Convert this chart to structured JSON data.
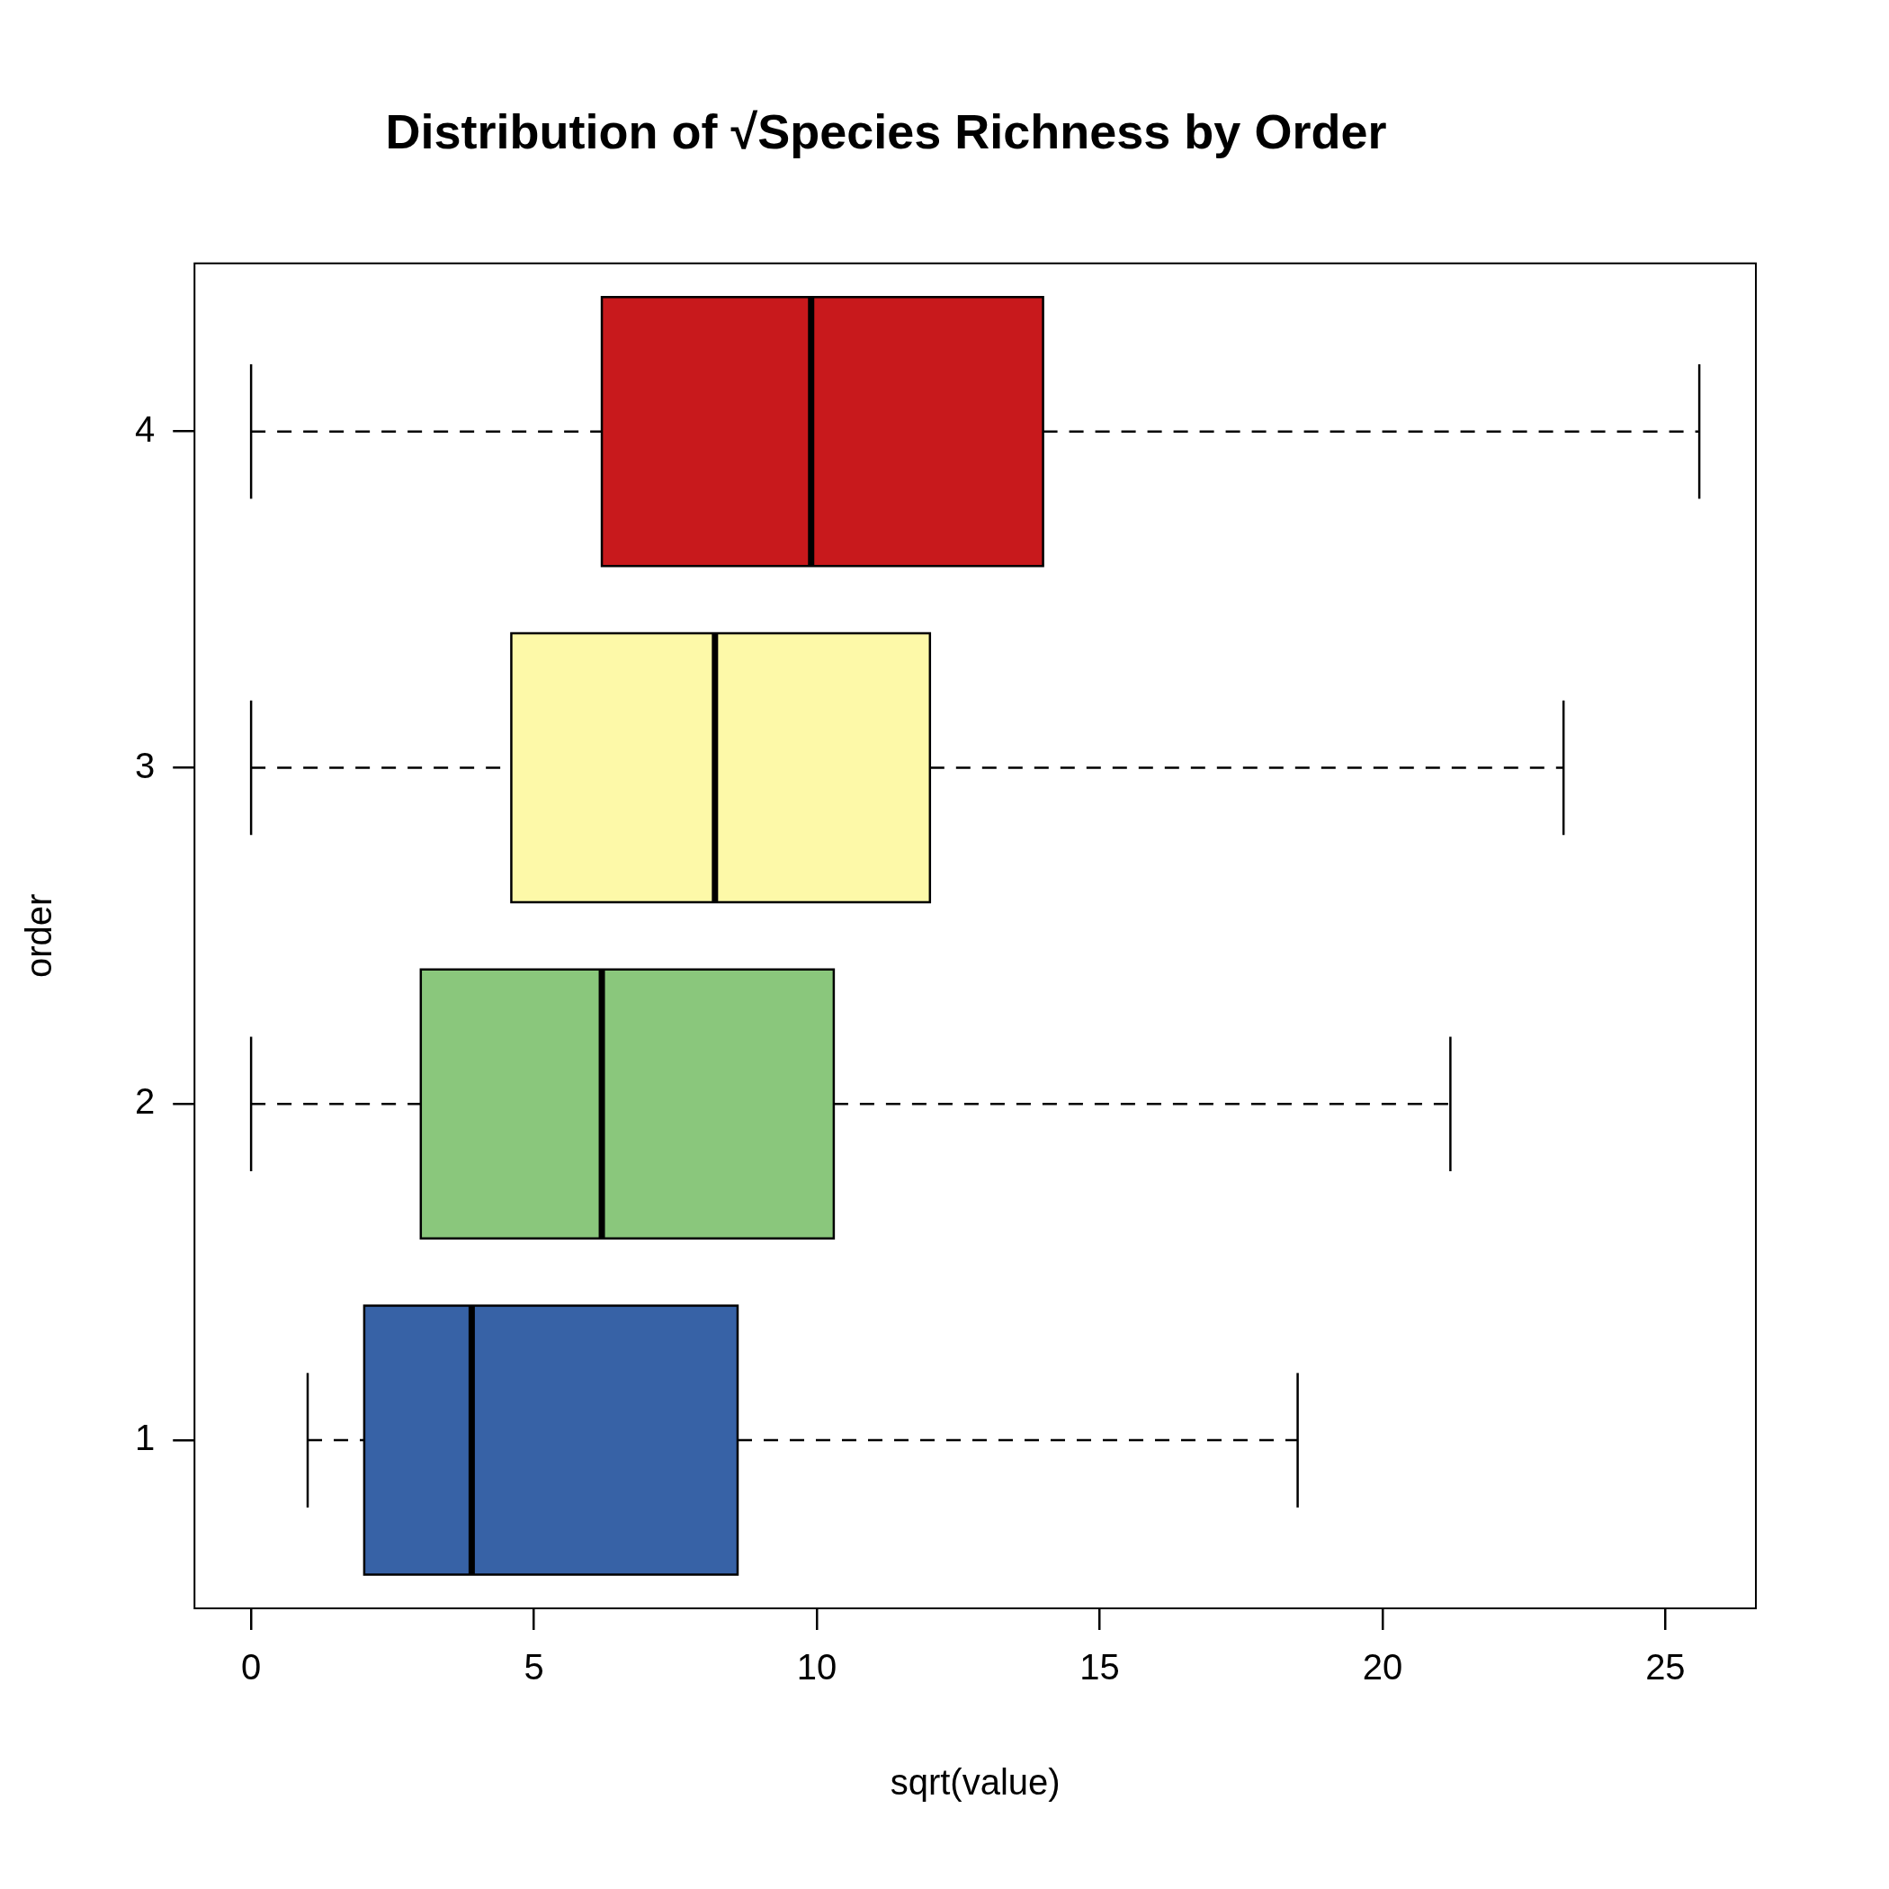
{
  "chart_data": {
    "type": "box",
    "title": "Distribution of √Species Richness by Order",
    "xlabel": "sqrt(value)",
    "ylabel": "order",
    "orientation": "horizontal",
    "categories": [
      "4",
      "3",
      "2",
      "1"
    ],
    "boxes": [
      {
        "low": 0,
        "q1": 6.2,
        "median": 9.9,
        "q3": 14.0,
        "high": 25.6
      },
      {
        "low": 0,
        "q1": 4.6,
        "median": 8.2,
        "q3": 12.0,
        "high": 23.2
      },
      {
        "low": 0,
        "q1": 3.0,
        "median": 6.2,
        "q3": 10.3,
        "high": 21.2
      },
      {
        "low": 1.0,
        "q1": 2.0,
        "median": 3.9,
        "q3": 8.6,
        "high": 18.5
      }
    ],
    "colors": [
      "#c8191c",
      "#fdf9a8",
      "#8ac77c",
      "#3762a6"
    ],
    "xlim": [
      -1.0,
      26.6
    ],
    "xticks": [
      0,
      5,
      10,
      15,
      20,
      25
    ]
  }
}
